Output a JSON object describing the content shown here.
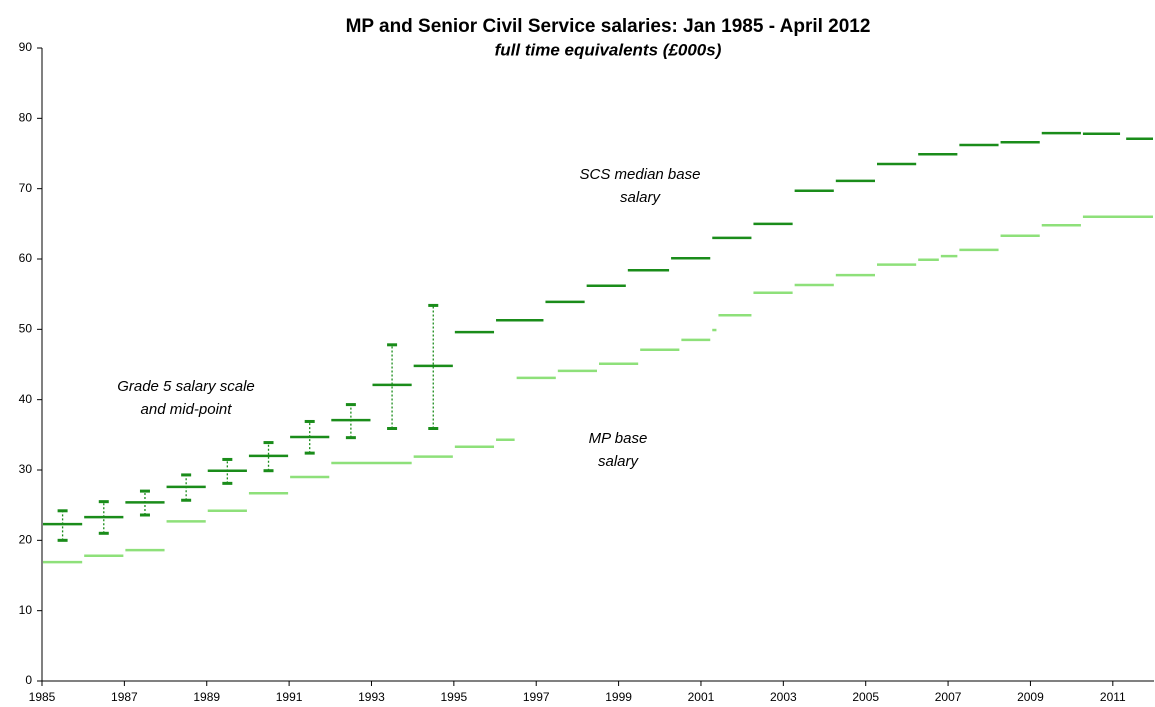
{
  "chart_data": {
    "type": "segment",
    "title": "MP and Senior Civil Service salaries: Jan 1985 - April 2012",
    "subtitle": "full time equivalents (£000s)",
    "xlim": [
      1985,
      2012
    ],
    "xticks": [
      1985,
      1987,
      1989,
      1991,
      1993,
      1995,
      1997,
      1999,
      2001,
      2003,
      2005,
      2007,
      2009,
      2011
    ],
    "ylim": [
      0,
      90
    ],
    "yticks": [
      0,
      10,
      20,
      30,
      40,
      50,
      60,
      70,
      80,
      90
    ],
    "annotations": [
      [
        "SCS median base",
        "salary"
      ],
      [
        "Grade 5 salary scale",
        "and mid-point"
      ],
      [
        "MP base",
        "salary"
      ]
    ],
    "series": [
      {
        "color": "#8ee07a",
        "start": [
          1985,
          1986,
          1987,
          1988,
          1989,
          1990,
          1991,
          1992,
          1994,
          1995,
          1996,
          1996.5,
          1997.5,
          1998.5,
          1999.5,
          2000.5,
          2001.25,
          2001.4,
          2002.25,
          2003.25,
          2004.25,
          2005.25,
          2006.25,
          2006.8,
          2007.25,
          2008.25,
          2009.25,
          2010.25
        ],
        "end": [
          1986,
          1987,
          1988,
          1989,
          1990,
          1991,
          1992,
          1994,
          1995,
          1996,
          1996.5,
          1997.5,
          1998.5,
          1999.5,
          2000.5,
          2001.25,
          2001.4,
          2002.25,
          2003.25,
          2004.25,
          2005.25,
          2006.25,
          2006.8,
          2007.25,
          2008.25,
          2009.25,
          2010.25,
          2012
        ],
        "values": [
          16.9,
          17.8,
          18.6,
          22.7,
          24.2,
          26.7,
          29.0,
          31.0,
          31.9,
          33.3,
          34.3,
          43.1,
          44.1,
          45.1,
          47.1,
          48.5,
          49.9,
          52.0,
          55.2,
          56.3,
          57.7,
          59.2,
          59.9,
          60.4,
          61.3,
          63.3,
          64.8,
          66.0
        ]
      },
      {
        "color": "#1a8c1a",
        "start": [
          1985,
          1986,
          1987,
          1988,
          1989,
          1990,
          1991,
          1992,
          1993,
          1994
        ],
        "end": [
          1986,
          1987,
          1988,
          1989,
          1990,
          1991,
          1992,
          1993,
          1994,
          1995
        ],
        "values": [
          22.3,
          23.3,
          25.4,
          27.6,
          29.9,
          32.0,
          34.7,
          37.1,
          42.1,
          44.8
        ],
        "low": [
          20.0,
          21.0,
          23.6,
          25.7,
          28.1,
          29.9,
          32.4,
          34.6,
          35.9,
          35.9
        ],
        "high": [
          24.2,
          25.5,
          27.0,
          29.3,
          31.5,
          33.9,
          36.9,
          39.3,
          47.8,
          53.4
        ]
      },
      {
        "color": "#1a8c1a",
        "start": [
          1995,
          1996,
          1997.2,
          1998.2,
          1999.2,
          2000.25,
          2001.25,
          2002.25,
          2003.25,
          2004.25,
          2005.25,
          2006.25,
          2007.25,
          2008.25,
          2009.25,
          2010.25,
          2011.3
        ],
        "end": [
          1996,
          1997.2,
          1998.2,
          1999.2,
          2000.25,
          2001.25,
          2002.25,
          2003.25,
          2004.25,
          2005.25,
          2006.25,
          2007.25,
          2008.25,
          2009.25,
          2010.25,
          2011.2,
          2012
        ],
        "values": [
          49.6,
          51.3,
          53.9,
          56.2,
          58.4,
          60.1,
          63.0,
          65.0,
          69.7,
          71.1,
          73.5,
          74.9,
          76.2,
          76.6,
          77.9,
          77.8,
          77.1
        ]
      }
    ]
  }
}
